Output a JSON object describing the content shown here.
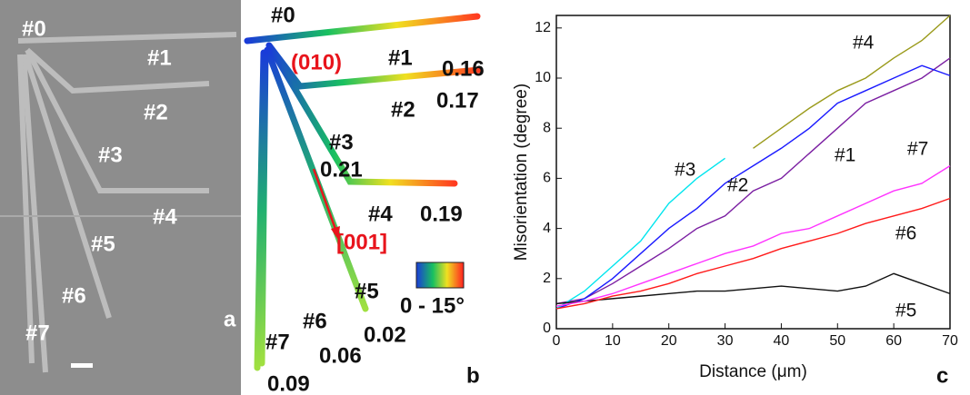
{
  "panel_a": {
    "label": "a",
    "tags": [
      "#0",
      "#1",
      "#2",
      "#3",
      "#4",
      "#5",
      "#6",
      "#7"
    ]
  },
  "panel_b": {
    "label": "b",
    "tags": [
      "#0",
      "#1",
      "#2",
      "#3",
      "#4",
      "#5",
      "#6",
      "#7"
    ],
    "plane": "(010)",
    "direction": "[001]",
    "colorbar": "0 - 15°",
    "numbers": [
      "0.16",
      "0.17",
      "0.21",
      "0.19",
      "0.02",
      "0.06",
      "0.09"
    ]
  },
  "chart_data": {
    "type": "line",
    "panel_label": "c",
    "x_label": "Distance (μm)",
    "y_label": "Misorientation (degree)",
    "x": [
      0,
      5,
      10,
      15,
      20,
      25,
      30,
      35,
      40,
      45,
      50,
      55,
      60,
      65,
      70
    ],
    "xlim": [
      0,
      70
    ],
    "xticks": [
      0,
      10,
      20,
      30,
      40,
      50,
      60,
      70
    ],
    "ylim": [
      0,
      12.5
    ],
    "yticks": [
      0,
      2,
      4,
      6,
      8,
      10,
      12
    ],
    "series": [
      {
        "name": "#1",
        "color": "#7b1fa2",
        "values": [
          1,
          1.2,
          1.8,
          2.5,
          3.2,
          4,
          4.5,
          5.5,
          6,
          7,
          8,
          9,
          9.5,
          10,
          10.8
        ]
      },
      {
        "name": "#2",
        "color": "#1a1aff",
        "values": [
          0.8,
          1.2,
          2,
          3,
          4,
          4.8,
          5.8,
          6.5,
          7.2,
          8,
          9,
          9.5,
          10,
          10.5,
          10.1
        ]
      },
      {
        "name": "#3",
        "color": "#00e5ee",
        "values": [
          0.8,
          1.5,
          2.5,
          3.5,
          5,
          6,
          6.8,
          null,
          null,
          null,
          null,
          null,
          null,
          null,
          null
        ]
      },
      {
        "name": "#4",
        "color": "#9a9a1a",
        "values": [
          null,
          null,
          null,
          null,
          null,
          null,
          null,
          7.2,
          8,
          8.8,
          9.5,
          10,
          10.8,
          11.5,
          12.5
        ]
      },
      {
        "name": "#5",
        "color": "#111111",
        "values": [
          1,
          1.1,
          1.2,
          1.3,
          1.4,
          1.5,
          1.5,
          1.6,
          1.7,
          1.6,
          1.5,
          1.7,
          2.2,
          1.8,
          1.4
        ]
      },
      {
        "name": "#6",
        "color": "#ff1a1a",
        "values": [
          0.8,
          1,
          1.3,
          1.5,
          1.8,
          2.2,
          2.5,
          2.8,
          3.2,
          3.5,
          3.8,
          4.2,
          4.5,
          4.8,
          5.2
        ]
      },
      {
        "name": "#7",
        "color": "#ff33ff",
        "values": [
          0.9,
          1.1,
          1.4,
          1.8,
          2.2,
          2.6,
          3,
          3.3,
          3.8,
          4,
          4.5,
          5,
          5.5,
          5.8,
          6.5
        ]
      }
    ]
  }
}
